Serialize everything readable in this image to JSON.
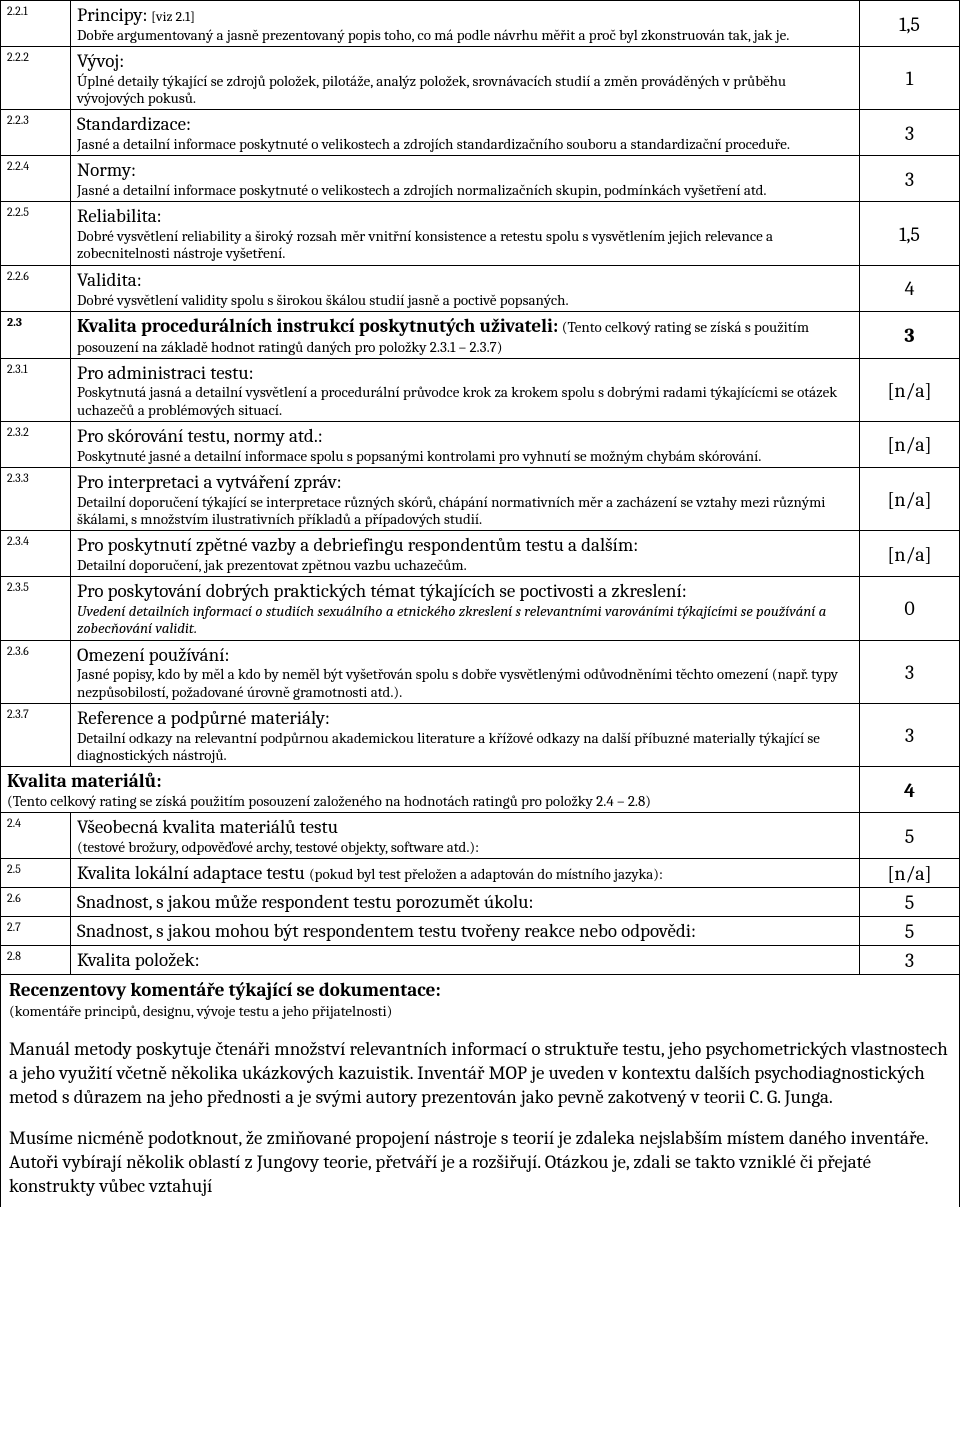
{
  "rows": [
    {
      "num": "2.2.1",
      "title": "Principy:",
      "ref": "[viz 2.1]",
      "desc": "Dobře argumentovaný a jasně prezentovaný popis toho, co má podle návrhu měřit a proč byl zkonstruován tak, jak je.",
      "rating": "1,5"
    },
    {
      "num": "2.2.2",
      "title": "Vývoj:",
      "desc": "Úplné detaily týkající se zdrojů položek, pilotáže, analýz položek, srovnávacích studií a změn prováděných v průběhu vývojových pokusů.",
      "rating": "1"
    },
    {
      "num": "2.2.3",
      "title": "Standardizace:",
      "desc": "Jasné a detailní informace poskytnuté o velikostech a zdrojích standardizačního souboru a standardizační proceduře.",
      "rating": "3"
    },
    {
      "num": "2.2.4",
      "title": "Normy:",
      "desc": "Jasné a detailní informace poskytnuté o velikostech a zdrojích normalizačních skupin, podmínkách vyšetření atd.",
      "rating": "3"
    },
    {
      "num": "2.2.5",
      "title": "Reliabilita:",
      "desc": "Dobré vysvětlení reliability a široký rozsah měr vnitřní konsistence a retestu spolu s vysvětlením jejich relevance a zobecnitelnosti nástroje vyšetření.",
      "rating": "1,5"
    },
    {
      "num": "2.2.6",
      "title": "Validita:",
      "desc": "Dobré vysvětlení validity spolu s širokou škálou studií jasně a poctivě popsaných.",
      "rating": "4"
    },
    {
      "num": "2.3",
      "numBold": true,
      "titleBold": true,
      "title": "Kvalita procedurálních instrukcí poskytnutých uživateli:",
      "inlineNote": "(Tento celkový rating se získá s použitím posouzení na základě hodnot ratingů daných pro položky 2.3.1 – 2.3.7)",
      "rating": "3",
      "ratingBold": true
    },
    {
      "num": "2.3.1",
      "title": "Pro administraci testu:",
      "desc": "Poskytnutá jasná a detailní vysvětlení a procedurální průvodce krok za krokem spolu s dobrými radami týkajícícmi se otázek uchazečů a problémových situací.",
      "rating": "[n/a]"
    },
    {
      "num": "2.3.2",
      "title": "Pro skórování testu, normy atd.:",
      "desc": "Poskytnuté jasné a detailní informace spolu s popsanými kontrolami pro vyhnutí se možným chybám skórování.",
      "rating": "[n/a]"
    },
    {
      "num": "2.3.3",
      "title": "Pro interpretaci a vytváření zpráv:",
      "desc": "Detailní doporučení týkající se interpretace různých skórů, chápání normativních měr a zacházení se vztahy mezi různými škálami, s množstvím ilustrativních příkladů a případových studií.",
      "rating": "[n/a]"
    },
    {
      "num": "2.3.4",
      "title": "Pro poskytnutí zpětné vazby a debriefingu respondentům testu a dalším:",
      "desc": "Detailní doporučení, jak prezentovat zpětnou vazbu uchazečům.",
      "rating": "[n/a]"
    },
    {
      "num": "2.3.5",
      "title": "Pro poskytování dobrých praktických témat týkajících se poctivosti a zkreslení:",
      "descItalic": true,
      "desc": "Uvedení detailních informací o studiích sexuálního a etnického zkreslení s relevantními varováními týkajícími se používání a zobecňování validit.",
      "rating": "0"
    },
    {
      "num": "2.3.6",
      "title": "Omezení používání:",
      "desc": "Jasné popisy, kdo by měl a kdo by neměl být vyšetřován spolu s dobře vysvětlenými odůvodněními těchto omezení (např. typy nezpůsobilostí, požadované úrovně gramotnosti atd.).",
      "rating": "3"
    },
    {
      "num": "2.3.7",
      "title": "Reference a podpůrné materiály:",
      "desc": "Detailní odkazy na relevantní podpůrnou akademickou literature a křížové odkazy na další příbuzné materially týkající se diagnostických nástrojů.",
      "rating": "3"
    },
    {
      "sectionHeader": true,
      "headerTitle": "Kvalita materiálů:",
      "headerNote": "(Tento celkový rating se získá použitím posouzení založeného na hodnotách ratingů pro položky 2.4 – 2.8)",
      "rating": "4",
      "ratingBold": true
    },
    {
      "num": "2.4",
      "title": "Všeobecná kvalita materiálů testu",
      "desc": "(testové brožury, odpověďové archy, testové objekty, software atd.):",
      "rating": "5"
    },
    {
      "num": "2.5",
      "title": "Kvalita lokální adaptace testu ",
      "inlineNote": "(pokud byl test přeložen a adaptován do místního jazyka):",
      "rating": "[n/a]"
    },
    {
      "num": "2.6",
      "title": "Snadnost, s jakou může respondent testu porozumět úkolu:",
      "rating": "5"
    },
    {
      "num": "2.7",
      "title": "Snadnost, s jakou mohou být respondentem testu tvořeny reakce nebo odpovědi:",
      "rating": "5"
    },
    {
      "num": "2.8",
      "title": "Kvalita položek:",
      "rating": "3"
    }
  ],
  "comments": {
    "title": "Recenzentovy komentáře týkající se dokumentace:",
    "sub": "(komentáře principů, designu, vývoje testu a jeho přijatelnosti)",
    "p1": "Manuál metody poskytuje čtenáři množství relevantních informací o struktuře testu, jeho psychometrických vlastnostech a jeho využití včetně několika ukázkových kazuistik. Inventář MOP je uveden v kontextu dalších psychodiagnostických metod s důrazem na jeho přednosti a je svými autory prezentován jako pevně zakotvený v teorii C. G. Junga.",
    "p2": "Musíme nicméně podotknout, že zmiňované propojení nástroje s teorií je zdaleka nejslabším místem daného inventáře. Autoři vybírají několik oblastí z Jungovy teorie, přetváří je a rozšiřují. Otázkou je, zdali se takto vzniklé či přejaté konstrukty vůbec vztahují"
  }
}
